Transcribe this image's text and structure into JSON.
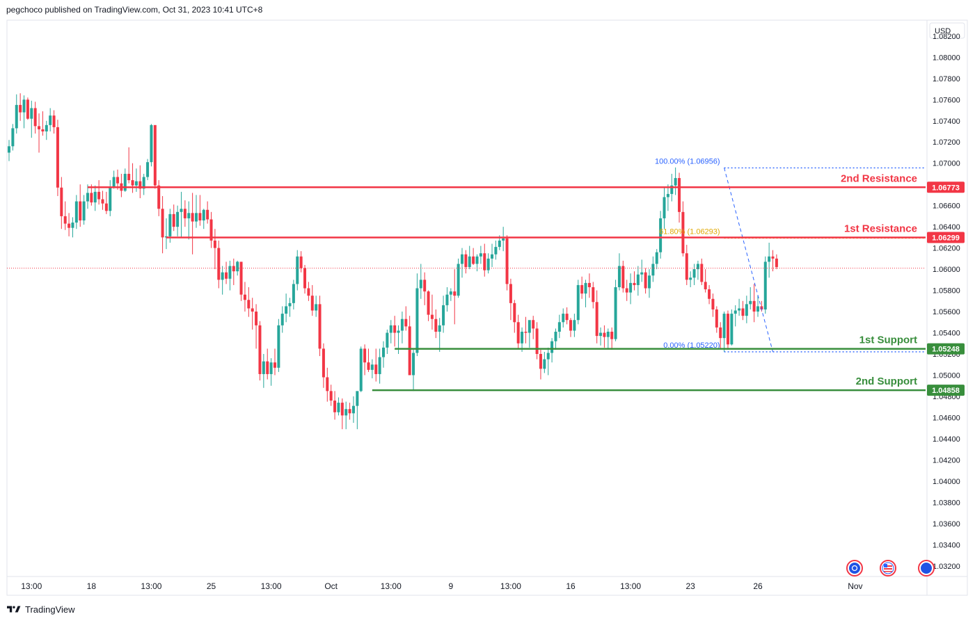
{
  "header": {
    "published": "pegchoco published on TradingView.com, Oct 31, 2023 10:41 UTC+8"
  },
  "footer": {
    "brand": "TradingView",
    "logo_icon": "tradingview-logo-icon"
  },
  "colors": {
    "up": "#26a69a",
    "down": "#f23645",
    "resistance": "#f23645",
    "support": "#388e3c",
    "fib": "#2962ff",
    "fib_mid": "#e0a800",
    "axis_text": "#131722",
    "grid_border": "#e0e3eb"
  },
  "chart_data": {
    "type": "candlestick",
    "currency": "USD",
    "y_ticks": [
      "1.08200",
      "1.08000",
      "1.07800",
      "1.07600",
      "1.07400",
      "1.07200",
      "1.07000",
      "1.06800",
      "1.06600",
      "1.06400",
      "1.06200",
      "1.06000",
      "1.05800",
      "1.05600",
      "1.05400",
      "1.05200",
      "1.05000",
      "1.04800",
      "1.04600",
      "1.04400",
      "1.04200",
      "1.04000",
      "1.03800",
      "1.03600",
      "1.03400",
      "1.03200"
    ],
    "ylim": [
      1.031,
      1.0835
    ],
    "x_ticks": [
      {
        "label": "13:00",
        "i": 6
      },
      {
        "label": "18",
        "i": 22
      },
      {
        "label": "13:00",
        "i": 38
      },
      {
        "label": "25",
        "i": 54
      },
      {
        "label": "13:00",
        "i": 70
      },
      {
        "label": "Oct",
        "i": 86
      },
      {
        "label": "13:00",
        "i": 102
      },
      {
        "label": "9",
        "i": 118
      },
      {
        "label": "13:00",
        "i": 134
      },
      {
        "label": "16",
        "i": 150
      },
      {
        "label": "13:00",
        "i": 166
      },
      {
        "label": "23",
        "i": 182
      },
      {
        "label": "26",
        "i": 200
      },
      {
        "label": "Nov",
        "i": 226
      }
    ],
    "current_price": 1.0601,
    "levels": [
      {
        "name": "2nd Resistance",
        "value": "1.06773",
        "kind": "resistance",
        "from_i": 21
      },
      {
        "name": "1st Resistance",
        "value": "1.06299",
        "kind": "resistance",
        "from_i": 42
      },
      {
        "name": "1st Support",
        "value": "1.05248",
        "kind": "support",
        "from_i": 103
      },
      {
        "name": "2nd Support",
        "value": "1.04858",
        "kind": "support",
        "from_i": 97
      }
    ],
    "fibonacci": {
      "levels": [
        {
          "label": "100.00% (1.06956)",
          "value": 1.06956
        },
        {
          "label": "61.80% (1.06293)",
          "value": 1.06293
        },
        {
          "label": "0.00% (1.05220)",
          "value": 1.0522
        }
      ],
      "from_i": 191,
      "to_i": 204
    },
    "candles": [
      [
        1.071,
        1.0722,
        1.0702,
        1.0716
      ],
      [
        1.0716,
        1.0737,
        1.0712,
        1.0733
      ],
      [
        1.0733,
        1.0765,
        1.0728,
        1.0755
      ],
      [
        1.0755,
        1.0766,
        1.074,
        1.0748
      ],
      [
        1.0748,
        1.0764,
        1.0733,
        1.076
      ],
      [
        1.076,
        1.0762,
        1.0741,
        1.0742
      ],
      [
        1.0742,
        1.0759,
        1.0724,
        1.0752
      ],
      [
        1.0752,
        1.0758,
        1.0728,
        1.0735
      ],
      [
        1.0735,
        1.0747,
        1.071,
        1.0732
      ],
      [
        1.0732,
        1.0749,
        1.0726,
        1.073
      ],
      [
        1.073,
        1.074,
        1.0722,
        1.0736
      ],
      [
        1.0736,
        1.0752,
        1.073,
        1.0745
      ],
      [
        1.0745,
        1.075,
        1.0728,
        1.0734
      ],
      [
        1.0734,
        1.0741,
        1.0669,
        1.0677
      ],
      [
        1.0677,
        1.0687,
        1.0638,
        1.065
      ],
      [
        1.065,
        1.0664,
        1.0637,
        1.0643
      ],
      [
        1.0643,
        1.0653,
        1.0631,
        1.0639
      ],
      [
        1.0639,
        1.0649,
        1.063,
        1.0644
      ],
      [
        1.0644,
        1.067,
        1.0638,
        1.0664
      ],
      [
        1.0664,
        1.068,
        1.064,
        1.0646
      ],
      [
        1.0646,
        1.067,
        1.0642,
        1.0664
      ],
      [
        1.0664,
        1.068,
        1.0657,
        1.0672
      ],
      [
        1.0672,
        1.068,
        1.066,
        1.0663
      ],
      [
        1.0663,
        1.0679,
        1.0655,
        1.0673
      ],
      [
        1.0673,
        1.0684,
        1.0661,
        1.0666
      ],
      [
        1.0666,
        1.0674,
        1.0656,
        1.0662
      ],
      [
        1.0662,
        1.0673,
        1.0652,
        1.0655
      ],
      [
        1.0655,
        1.0684,
        1.065,
        1.0678
      ],
      [
        1.0678,
        1.0693,
        1.0676,
        1.0687
      ],
      [
        1.0687,
        1.0694,
        1.0675,
        1.0681
      ],
      [
        1.0681,
        1.069,
        1.0668,
        1.0674
      ],
      [
        1.0674,
        1.0695,
        1.0673,
        1.069
      ],
      [
        1.069,
        1.0715,
        1.0681,
        1.0684
      ],
      [
        1.0684,
        1.07,
        1.0672,
        1.0679
      ],
      [
        1.0679,
        1.0695,
        1.0673,
        1.0683
      ],
      [
        1.0683,
        1.0698,
        1.0667,
        1.0676
      ],
      [
        1.0676,
        1.069,
        1.067,
        1.0687
      ],
      [
        1.0687,
        1.0704,
        1.0684,
        1.0701
      ],
      [
        1.0701,
        1.0737,
        1.0697,
        1.0736
      ],
      [
        1.0736,
        1.0736,
        1.0676,
        1.0679
      ],
      [
        1.0679,
        1.0684,
        1.065,
        1.0657
      ],
      [
        1.0657,
        1.0669,
        1.0615,
        1.063
      ],
      [
        1.063,
        1.0648,
        1.0619,
        1.0631
      ],
      [
        1.0631,
        1.0657,
        1.0625,
        1.0652
      ],
      [
        1.0652,
        1.0661,
        1.0636,
        1.064
      ],
      [
        1.064,
        1.066,
        1.0631,
        1.0654
      ],
      [
        1.0654,
        1.0673,
        1.063,
        1.0657
      ],
      [
        1.0657,
        1.0665,
        1.064,
        1.0648
      ],
      [
        1.0648,
        1.0664,
        1.0628,
        1.0653
      ],
      [
        1.0653,
        1.0672,
        1.0614,
        1.0645
      ],
      [
        1.0645,
        1.067,
        1.0639,
        1.0653
      ],
      [
        1.0653,
        1.067,
        1.0641,
        1.0646
      ],
      [
        1.0646,
        1.0657,
        1.0638,
        1.0656
      ],
      [
        1.0656,
        1.0664,
        1.0643,
        1.0647
      ],
      [
        1.0647,
        1.0654,
        1.062,
        1.0627
      ],
      [
        1.0627,
        1.0638,
        1.06,
        1.062
      ],
      [
        1.062,
        1.0627,
        1.0582,
        1.059
      ],
      [
        1.059,
        1.0603,
        1.0576,
        1.0597
      ],
      [
        1.0597,
        1.0607,
        1.0586,
        1.0591
      ],
      [
        1.0591,
        1.0608,
        1.058,
        1.0603
      ],
      [
        1.0603,
        1.061,
        1.0585,
        1.0598
      ],
      [
        1.0598,
        1.0608,
        1.0594,
        1.0607
      ],
      [
        1.0607,
        1.0607,
        1.057,
        1.0576
      ],
      [
        1.0576,
        1.0588,
        1.056,
        1.0571
      ],
      [
        1.0571,
        1.0583,
        1.0555,
        1.0563
      ],
      [
        1.0563,
        1.0573,
        1.0543,
        1.056
      ],
      [
        1.056,
        1.0567,
        1.0525,
        1.0547
      ],
      [
        1.0547,
        1.0551,
        1.0495,
        1.0501
      ],
      [
        1.0501,
        1.052,
        1.0488,
        1.0513
      ],
      [
        1.0513,
        1.0525,
        1.0496,
        1.0501
      ],
      [
        1.0501,
        1.0516,
        1.049,
        1.0512
      ],
      [
        1.0512,
        1.0525,
        1.05,
        1.0507
      ],
      [
        1.0507,
        1.0553,
        1.0503,
        1.0547
      ],
      [
        1.0547,
        1.0565,
        1.054,
        1.0558
      ],
      [
        1.0558,
        1.0577,
        1.055,
        1.0565
      ],
      [
        1.0565,
        1.0573,
        1.0555,
        1.0568
      ],
      [
        1.0568,
        1.059,
        1.0562,
        1.0586
      ],
      [
        1.0586,
        1.0618,
        1.058,
        1.0612
      ],
      [
        1.0612,
        1.0617,
        1.0597,
        1.0601
      ],
      [
        1.0601,
        1.0604,
        1.0577,
        1.0582
      ],
      [
        1.0582,
        1.0588,
        1.057,
        1.0575
      ],
      [
        1.0575,
        1.0585,
        1.0556,
        1.0561
      ],
      [
        1.0561,
        1.0575,
        1.0555,
        1.0567
      ],
      [
        1.0567,
        1.0575,
        1.0518,
        1.0525
      ],
      [
        1.0525,
        1.053,
        1.0488,
        1.0498
      ],
      [
        1.0498,
        1.0507,
        1.0475,
        1.0485
      ],
      [
        1.0485,
        1.0491,
        1.0471,
        1.0476
      ],
      [
        1.0476,
        1.0485,
        1.0458,
        1.0465
      ],
      [
        1.0465,
        1.0479,
        1.0462,
        1.0474
      ],
      [
        1.0474,
        1.0478,
        1.0449,
        1.0462
      ],
      [
        1.0462,
        1.0475,
        1.0449,
        1.0468
      ],
      [
        1.0468,
        1.0474,
        1.0458,
        1.0464
      ],
      [
        1.0464,
        1.048,
        1.0455,
        1.0471
      ],
      [
        1.0471,
        1.0482,
        1.0449,
        1.0485
      ],
      [
        1.0485,
        1.0527,
        1.0484,
        1.0525
      ],
      [
        1.0525,
        1.0529,
        1.05,
        1.0512
      ],
      [
        1.0512,
        1.0525,
        1.0503,
        1.0505
      ],
      [
        1.0505,
        1.0515,
        1.0497,
        1.051
      ],
      [
        1.051,
        1.0525,
        1.0494,
        1.0501
      ],
      [
        1.0501,
        1.0525,
        1.0492,
        1.0517
      ],
      [
        1.0517,
        1.0532,
        1.0507,
        1.0526
      ],
      [
        1.0526,
        1.0543,
        1.052,
        1.054
      ],
      [
        1.054,
        1.0552,
        1.053,
        1.0547
      ],
      [
        1.0547,
        1.0556,
        1.0527,
        1.054
      ],
      [
        1.054,
        1.0547,
        1.052,
        1.0542
      ],
      [
        1.0542,
        1.056,
        1.053,
        1.0553
      ],
      [
        1.0553,
        1.0565,
        1.0542,
        1.0546
      ],
      [
        1.0546,
        1.0556,
        1.05,
        1.05
      ],
      [
        1.05,
        1.0524,
        1.0485,
        1.0521
      ],
      [
        1.0521,
        1.0596,
        1.0518,
        1.0582
      ],
      [
        1.0582,
        1.0605,
        1.0572,
        1.059
      ],
      [
        1.059,
        1.0597,
        1.0566,
        1.0579
      ],
      [
        1.0579,
        1.058,
        1.0551,
        1.0557
      ],
      [
        1.0557,
        1.0576,
        1.0543,
        1.0553
      ],
      [
        1.0553,
        1.0562,
        1.0535,
        1.0541
      ],
      [
        1.0541,
        1.0554,
        1.0522,
        1.0547
      ],
      [
        1.0547,
        1.0575,
        1.054,
        1.0566
      ],
      [
        1.0566,
        1.0583,
        1.056,
        1.0576
      ],
      [
        1.0576,
        1.0582,
        1.057,
        1.0579
      ],
      [
        1.0579,
        1.06,
        1.0548,
        1.0575
      ],
      [
        1.0575,
        1.061,
        1.0573,
        1.0605
      ],
      [
        1.0605,
        1.062,
        1.0592,
        1.0614
      ],
      [
        1.0614,
        1.0618,
        1.0596,
        1.0602
      ],
      [
        1.0602,
        1.0622,
        1.06,
        1.0612
      ],
      [
        1.0612,
        1.062,
        1.0604,
        1.0605
      ],
      [
        1.0605,
        1.0614,
        1.0598,
        1.0612
      ],
      [
        1.0612,
        1.0622,
        1.0605,
        1.0615
      ],
      [
        1.0615,
        1.0624,
        1.0593,
        1.0599
      ],
      [
        1.0599,
        1.0615,
        1.0596,
        1.061
      ],
      [
        1.061,
        1.0624,
        1.0602,
        1.0614
      ],
      [
        1.0614,
        1.0627,
        1.0609,
        1.0621
      ],
      [
        1.0621,
        1.0632,
        1.0618,
        1.0627
      ],
      [
        1.0627,
        1.064,
        1.0617,
        1.0629
      ],
      [
        1.0629,
        1.0632,
        1.058,
        1.0586
      ],
      [
        1.0586,
        1.0591,
        1.0552,
        1.0568
      ],
      [
        1.0568,
        1.0571,
        1.054,
        1.055
      ],
      [
        1.055,
        1.0557,
        1.0525,
        1.053
      ],
      [
        1.053,
        1.0545,
        1.0522,
        1.0541
      ],
      [
        1.0541,
        1.0555,
        1.053,
        1.054
      ],
      [
        1.054,
        1.055,
        1.0526,
        1.0552
      ],
      [
        1.0552,
        1.0556,
        1.0534,
        1.0544
      ],
      [
        1.0544,
        1.055,
        1.0515,
        1.052
      ],
      [
        1.052,
        1.0524,
        1.0496,
        1.0506
      ],
      [
        1.0506,
        1.0522,
        1.0502,
        1.0515
      ],
      [
        1.0515,
        1.0526,
        1.05,
        1.0521
      ],
      [
        1.0521,
        1.0535,
        1.0512,
        1.0532
      ],
      [
        1.0532,
        1.0544,
        1.0524,
        1.0541
      ],
      [
        1.0541,
        1.0557,
        1.0535,
        1.055
      ],
      [
        1.055,
        1.0563,
        1.0545,
        1.0558
      ],
      [
        1.0558,
        1.0564,
        1.0548,
        1.0552
      ],
      [
        1.0552,
        1.0554,
        1.0536,
        1.0542
      ],
      [
        1.0542,
        1.0558,
        1.0536,
        1.0552
      ],
      [
        1.0552,
        1.059,
        1.0548,
        1.0585
      ],
      [
        1.0585,
        1.0593,
        1.0572,
        1.0577
      ],
      [
        1.0577,
        1.059,
        1.0564,
        1.0587
      ],
      [
        1.0587,
        1.0596,
        1.0573,
        1.0583
      ],
      [
        1.0583,
        1.0588,
        1.0563,
        1.0569
      ],
      [
        1.0569,
        1.058,
        1.053,
        1.0537
      ],
      [
        1.0537,
        1.0545,
        1.0528,
        1.054
      ],
      [
        1.054,
        1.0547,
        1.0526,
        1.0536
      ],
      [
        1.0536,
        1.0544,
        1.0525,
        1.0541
      ],
      [
        1.0541,
        1.0545,
        1.0524,
        1.0534
      ],
      [
        1.0534,
        1.059,
        1.0532,
        1.0583
      ],
      [
        1.0583,
        1.0615,
        1.058,
        1.0603
      ],
      [
        1.0603,
        1.0608,
        1.0578,
        1.0582
      ],
      [
        1.0582,
        1.059,
        1.057,
        1.0578
      ],
      [
        1.0578,
        1.0596,
        1.0567,
        1.0587
      ],
      [
        1.0587,
        1.0598,
        1.058,
        1.0585
      ],
      [
        1.0585,
        1.0603,
        1.0575,
        1.0595
      ],
      [
        1.0595,
        1.0609,
        1.0588,
        1.0597
      ],
      [
        1.0597,
        1.0601,
        1.0577,
        1.0582
      ],
      [
        1.0582,
        1.06,
        1.0573,
        1.0594
      ],
      [
        1.0594,
        1.0612,
        1.0588,
        1.0605
      ],
      [
        1.0605,
        1.0619,
        1.06,
        1.0616
      ],
      [
        1.0616,
        1.0655,
        1.061,
        1.0648
      ],
      [
        1.0648,
        1.0678,
        1.0638,
        1.0668
      ],
      [
        1.0668,
        1.068,
        1.0655,
        1.0671
      ],
      [
        1.0671,
        1.069,
        1.0664,
        1.0679
      ],
      [
        1.0679,
        1.0696,
        1.067,
        1.0686
      ],
      [
        1.0686,
        1.0691,
        1.0644,
        1.0654
      ],
      [
        1.0654,
        1.0664,
        1.0612,
        1.0615
      ],
      [
        1.0615,
        1.0623,
        1.0585,
        1.059
      ],
      [
        1.059,
        1.0598,
        1.0583,
        1.0592
      ],
      [
        1.0592,
        1.0605,
        1.0585,
        1.06
      ],
      [
        1.06,
        1.0608,
        1.059,
        1.0605
      ],
      [
        1.0605,
        1.061,
        1.0585,
        1.0588
      ],
      [
        1.0588,
        1.06,
        1.0578,
        1.0581
      ],
      [
        1.0581,
        1.0585,
        1.0567,
        1.0572
      ],
      [
        1.0572,
        1.0577,
        1.0555,
        1.0562
      ],
      [
        1.0562,
        1.0565,
        1.054,
        1.0545
      ],
      [
        1.0545,
        1.055,
        1.0525,
        1.0535
      ],
      [
        1.0535,
        1.056,
        1.0522,
        1.0558
      ],
      [
        1.0558,
        1.0561,
        1.0524,
        1.0529
      ],
      [
        1.0529,
        1.0562,
        1.0528,
        1.0558
      ],
      [
        1.0558,
        1.0566,
        1.0546,
        1.0561
      ],
      [
        1.0561,
        1.0572,
        1.0556,
        1.0563
      ],
      [
        1.0563,
        1.057,
        1.0552,
        1.0556
      ],
      [
        1.0556,
        1.0575,
        1.0549,
        1.0567
      ],
      [
        1.0567,
        1.0583,
        1.0562,
        1.057
      ],
      [
        1.057,
        1.0586,
        1.055,
        1.056
      ],
      [
        1.056,
        1.0575,
        1.0555,
        1.0565
      ],
      [
        1.0565,
        1.057,
        1.056,
        1.0562
      ],
      [
        1.0562,
        1.0612,
        1.0558,
        1.0607
      ],
      [
        1.0607,
        1.0625,
        1.0592,
        1.0612
      ],
      [
        1.0612,
        1.0618,
        1.0598,
        1.061
      ],
      [
        1.061,
        1.0614,
        1.06,
        1.0602
      ]
    ]
  }
}
